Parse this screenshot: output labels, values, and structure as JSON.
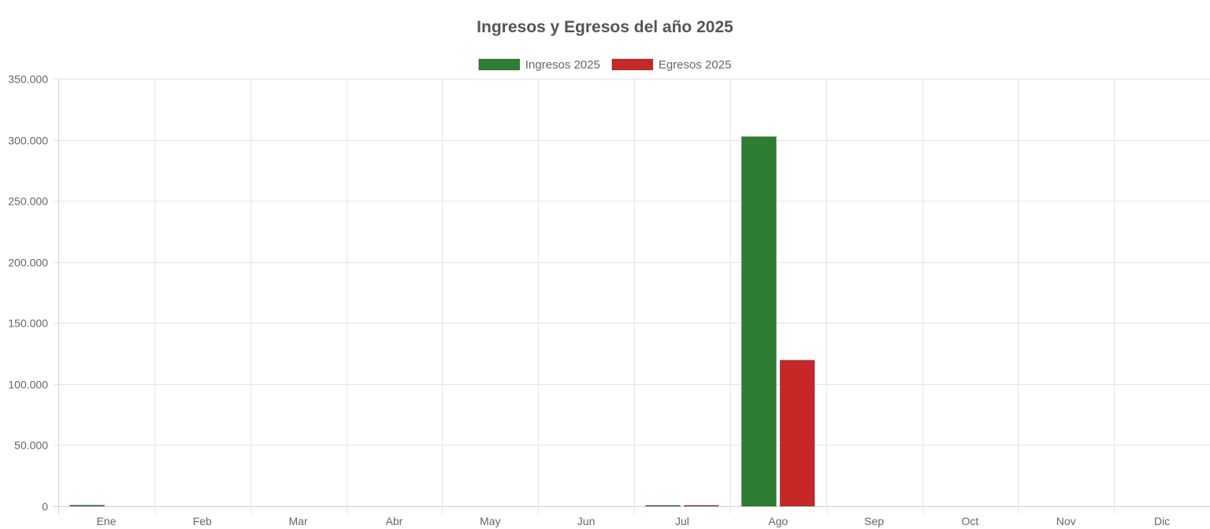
{
  "chart_data": {
    "type": "bar",
    "title": "Ingresos y Egresos del año 2025",
    "categories": [
      "Ene",
      "Feb",
      "Mar",
      "Abr",
      "May",
      "Jun",
      "Jul",
      "Ago",
      "Sep",
      "Oct",
      "Nov",
      "Dic"
    ],
    "series": [
      {
        "name": "Ingresos 2025",
        "color": "#2e7d32",
        "values": [
          800,
          0,
          0,
          0,
          0,
          0,
          400,
          302500,
          0,
          0,
          0,
          0
        ]
      },
      {
        "name": "Egresos 2025",
        "color": "#c62828",
        "values": [
          0,
          0,
          0,
          0,
          0,
          0,
          300,
          119500,
          0,
          0,
          0,
          0
        ]
      }
    ],
    "ylim": [
      0,
      350000
    ],
    "yticks": [
      "0",
      "50.000",
      "100.000",
      "150.000",
      "200.000",
      "250.000",
      "300.000",
      "350.000"
    ],
    "ytick_values": [
      0,
      50000,
      100000,
      150000,
      200000,
      250000,
      300000,
      350000
    ],
    "grid": true,
    "legend": "top-center"
  }
}
